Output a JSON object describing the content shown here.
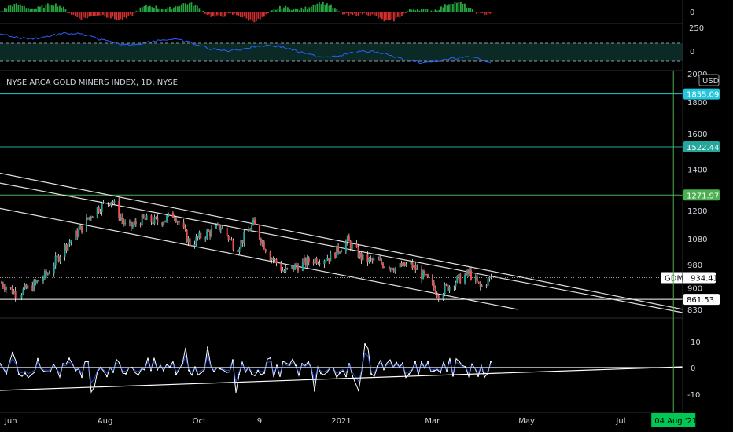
{
  "chart_data": {
    "type": "candlestick",
    "title": "NYSE ARCA GOLD MINERS INDEX, 1D, NYSE",
    "currency": "USD",
    "symbol": "GDM",
    "last_price": 934.41,
    "price_axis": {
      "scale": "log",
      "range": [
        820,
        2000
      ],
      "ticks": [
        2000,
        1800,
        1600,
        1400,
        1200,
        1080,
        980,
        900,
        830
      ]
    },
    "time_axis": {
      "range": [
        "2020-05-25",
        "2021-08-10"
      ],
      "ticks": [
        {
          "date": "2020-06-01",
          "label": "Jun"
        },
        {
          "date": "2020-08-01",
          "label": "Aug"
        },
        {
          "date": "2020-10-01",
          "label": "Oct"
        },
        {
          "date": "2020-11-09",
          "label": "9"
        },
        {
          "date": "2021-01-01",
          "label": "2021"
        },
        {
          "date": "2021-03-01",
          "label": "Mar"
        },
        {
          "date": "2021-05-01",
          "label": "May"
        },
        {
          "date": "2021-07-01",
          "label": "Jul"
        }
      ],
      "crosshair_date": "2021-08-04",
      "crosshair_label": "04 Aug '21"
    },
    "price_series": [
      {
        "date": "2020-05-26",
        "close": 915
      },
      {
        "date": "2020-06-05",
        "close": 880
      },
      {
        "date": "2020-06-15",
        "close": 905
      },
      {
        "date": "2020-06-25",
        "close": 950
      },
      {
        "date": "2020-07-05",
        "close": 1040
      },
      {
        "date": "2020-07-15",
        "close": 1110
      },
      {
        "date": "2020-07-25",
        "close": 1200
      },
      {
        "date": "2020-08-05",
        "close": 1250
      },
      {
        "date": "2020-08-15",
        "close": 1120
      },
      {
        "date": "2020-08-25",
        "close": 1160
      },
      {
        "date": "2020-09-05",
        "close": 1150
      },
      {
        "date": "2020-09-15",
        "close": 1185
      },
      {
        "date": "2020-09-25",
        "close": 1060
      },
      {
        "date": "2020-10-05",
        "close": 1100
      },
      {
        "date": "2020-10-15",
        "close": 1130
      },
      {
        "date": "2020-10-25",
        "close": 1040
      },
      {
        "date": "2020-11-05",
        "close": 1140
      },
      {
        "date": "2020-11-15",
        "close": 1020
      },
      {
        "date": "2020-11-25",
        "close": 955
      },
      {
        "date": "2020-12-05",
        "close": 980
      },
      {
        "date": "2020-12-15",
        "close": 1000
      },
      {
        "date": "2020-12-25",
        "close": 1010
      },
      {
        "date": "2021-01-05",
        "close": 1070
      },
      {
        "date": "2021-01-15",
        "close": 1000
      },
      {
        "date": "2021-01-25",
        "close": 990
      },
      {
        "date": "2021-02-05",
        "close": 970
      },
      {
        "date": "2021-02-15",
        "close": 980
      },
      {
        "date": "2021-02-25",
        "close": 930
      },
      {
        "date": "2021-03-05",
        "close": 880
      },
      {
        "date": "2021-03-15",
        "close": 920
      },
      {
        "date": "2021-03-25",
        "close": 950
      },
      {
        "date": "2021-04-01",
        "close": 900
      },
      {
        "date": "2021-04-08",
        "close": 934.41
      }
    ],
    "horizontal_levels": [
      {
        "price": 1855.09,
        "label": "1855.09",
        "color": "#26c6da"
      },
      {
        "price": 1522.44,
        "label": "1522.44",
        "color": "#26a69a"
      },
      {
        "price": 1271.97,
        "label": "1271.97",
        "color": "#4caf50"
      },
      {
        "price": 861.53,
        "label": "861.53",
        "color": "#ffffff"
      }
    ],
    "trend_lines": [
      {
        "from": {
          "date": "2020-05-25",
          "price": 1380
        },
        "to": {
          "date": "2021-08-10",
          "price": 830
        }
      },
      {
        "from": {
          "date": "2020-05-25",
          "price": 1330
        },
        "to": {
          "date": "2021-08-10",
          "price": 820
        }
      },
      {
        "from": {
          "date": "2020-05-25",
          "price": 1210
        },
        "to": {
          "date": "2021-04-25",
          "price": 830
        }
      }
    ],
    "top_histogram": {
      "axis_ticks": [
        0
      ],
      "colors": {
        "positive": "#26a641",
        "negative": "#d32f2f"
      }
    },
    "rsi_panel": {
      "axis_ticks": [
        250,
        0
      ],
      "line_color": "#2962ff"
    },
    "oscillator_panel": {
      "axis_ticks": [
        10,
        0,
        -10
      ],
      "range": [
        -15,
        15
      ]
    }
  }
}
